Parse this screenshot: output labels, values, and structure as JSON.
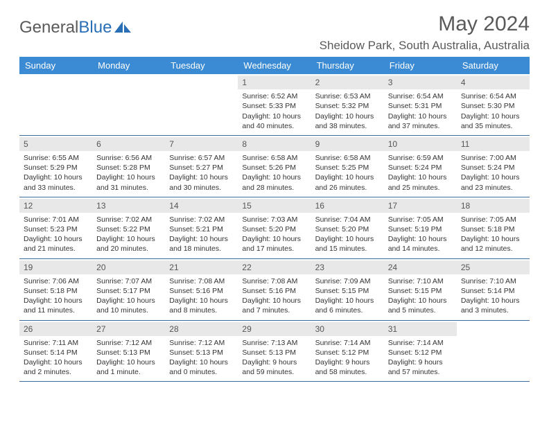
{
  "brand": {
    "part1": "General",
    "part2": "Blue"
  },
  "title": "May 2024",
  "location": "Sheidow Park, South Australia, Australia",
  "colors": {
    "header_bg": "#3b8bd4",
    "header_text": "#ffffff",
    "daynum_bg": "#e8e8e8",
    "week_border": "#3b6a9a",
    "text": "#333333",
    "muted": "#5a5a5a",
    "brand_blue": "#2a6fb5"
  },
  "dow": [
    "Sunday",
    "Monday",
    "Tuesday",
    "Wednesday",
    "Thursday",
    "Friday",
    "Saturday"
  ],
  "weeks": [
    [
      {
        "n": "",
        "sr": "",
        "ss": "",
        "dl": ""
      },
      {
        "n": "",
        "sr": "",
        "ss": "",
        "dl": ""
      },
      {
        "n": "",
        "sr": "",
        "ss": "",
        "dl": ""
      },
      {
        "n": "1",
        "sr": "Sunrise: 6:52 AM",
        "ss": "Sunset: 5:33 PM",
        "dl": "Daylight: 10 hours and 40 minutes."
      },
      {
        "n": "2",
        "sr": "Sunrise: 6:53 AM",
        "ss": "Sunset: 5:32 PM",
        "dl": "Daylight: 10 hours and 38 minutes."
      },
      {
        "n": "3",
        "sr": "Sunrise: 6:54 AM",
        "ss": "Sunset: 5:31 PM",
        "dl": "Daylight: 10 hours and 37 minutes."
      },
      {
        "n": "4",
        "sr": "Sunrise: 6:54 AM",
        "ss": "Sunset: 5:30 PM",
        "dl": "Daylight: 10 hours and 35 minutes."
      }
    ],
    [
      {
        "n": "5",
        "sr": "Sunrise: 6:55 AM",
        "ss": "Sunset: 5:29 PM",
        "dl": "Daylight: 10 hours and 33 minutes."
      },
      {
        "n": "6",
        "sr": "Sunrise: 6:56 AM",
        "ss": "Sunset: 5:28 PM",
        "dl": "Daylight: 10 hours and 31 minutes."
      },
      {
        "n": "7",
        "sr": "Sunrise: 6:57 AM",
        "ss": "Sunset: 5:27 PM",
        "dl": "Daylight: 10 hours and 30 minutes."
      },
      {
        "n": "8",
        "sr": "Sunrise: 6:58 AM",
        "ss": "Sunset: 5:26 PM",
        "dl": "Daylight: 10 hours and 28 minutes."
      },
      {
        "n": "9",
        "sr": "Sunrise: 6:58 AM",
        "ss": "Sunset: 5:25 PM",
        "dl": "Daylight: 10 hours and 26 minutes."
      },
      {
        "n": "10",
        "sr": "Sunrise: 6:59 AM",
        "ss": "Sunset: 5:24 PM",
        "dl": "Daylight: 10 hours and 25 minutes."
      },
      {
        "n": "11",
        "sr": "Sunrise: 7:00 AM",
        "ss": "Sunset: 5:24 PM",
        "dl": "Daylight: 10 hours and 23 minutes."
      }
    ],
    [
      {
        "n": "12",
        "sr": "Sunrise: 7:01 AM",
        "ss": "Sunset: 5:23 PM",
        "dl": "Daylight: 10 hours and 21 minutes."
      },
      {
        "n": "13",
        "sr": "Sunrise: 7:02 AM",
        "ss": "Sunset: 5:22 PM",
        "dl": "Daylight: 10 hours and 20 minutes."
      },
      {
        "n": "14",
        "sr": "Sunrise: 7:02 AM",
        "ss": "Sunset: 5:21 PM",
        "dl": "Daylight: 10 hours and 18 minutes."
      },
      {
        "n": "15",
        "sr": "Sunrise: 7:03 AM",
        "ss": "Sunset: 5:20 PM",
        "dl": "Daylight: 10 hours and 17 minutes."
      },
      {
        "n": "16",
        "sr": "Sunrise: 7:04 AM",
        "ss": "Sunset: 5:20 PM",
        "dl": "Daylight: 10 hours and 15 minutes."
      },
      {
        "n": "17",
        "sr": "Sunrise: 7:05 AM",
        "ss": "Sunset: 5:19 PM",
        "dl": "Daylight: 10 hours and 14 minutes."
      },
      {
        "n": "18",
        "sr": "Sunrise: 7:05 AM",
        "ss": "Sunset: 5:18 PM",
        "dl": "Daylight: 10 hours and 12 minutes."
      }
    ],
    [
      {
        "n": "19",
        "sr": "Sunrise: 7:06 AM",
        "ss": "Sunset: 5:18 PM",
        "dl": "Daylight: 10 hours and 11 minutes."
      },
      {
        "n": "20",
        "sr": "Sunrise: 7:07 AM",
        "ss": "Sunset: 5:17 PM",
        "dl": "Daylight: 10 hours and 10 minutes."
      },
      {
        "n": "21",
        "sr": "Sunrise: 7:08 AM",
        "ss": "Sunset: 5:16 PM",
        "dl": "Daylight: 10 hours and 8 minutes."
      },
      {
        "n": "22",
        "sr": "Sunrise: 7:08 AM",
        "ss": "Sunset: 5:16 PM",
        "dl": "Daylight: 10 hours and 7 minutes."
      },
      {
        "n": "23",
        "sr": "Sunrise: 7:09 AM",
        "ss": "Sunset: 5:15 PM",
        "dl": "Daylight: 10 hours and 6 minutes."
      },
      {
        "n": "24",
        "sr": "Sunrise: 7:10 AM",
        "ss": "Sunset: 5:15 PM",
        "dl": "Daylight: 10 hours and 5 minutes."
      },
      {
        "n": "25",
        "sr": "Sunrise: 7:10 AM",
        "ss": "Sunset: 5:14 PM",
        "dl": "Daylight: 10 hours and 3 minutes."
      }
    ],
    [
      {
        "n": "26",
        "sr": "Sunrise: 7:11 AM",
        "ss": "Sunset: 5:14 PM",
        "dl": "Daylight: 10 hours and 2 minutes."
      },
      {
        "n": "27",
        "sr": "Sunrise: 7:12 AM",
        "ss": "Sunset: 5:13 PM",
        "dl": "Daylight: 10 hours and 1 minute."
      },
      {
        "n": "28",
        "sr": "Sunrise: 7:12 AM",
        "ss": "Sunset: 5:13 PM",
        "dl": "Daylight: 10 hours and 0 minutes."
      },
      {
        "n": "29",
        "sr": "Sunrise: 7:13 AM",
        "ss": "Sunset: 5:13 PM",
        "dl": "Daylight: 9 hours and 59 minutes."
      },
      {
        "n": "30",
        "sr": "Sunrise: 7:14 AM",
        "ss": "Sunset: 5:12 PM",
        "dl": "Daylight: 9 hours and 58 minutes."
      },
      {
        "n": "31",
        "sr": "Sunrise: 7:14 AM",
        "ss": "Sunset: 5:12 PM",
        "dl": "Daylight: 9 hours and 57 minutes."
      },
      {
        "n": "",
        "sr": "",
        "ss": "",
        "dl": ""
      }
    ]
  ]
}
